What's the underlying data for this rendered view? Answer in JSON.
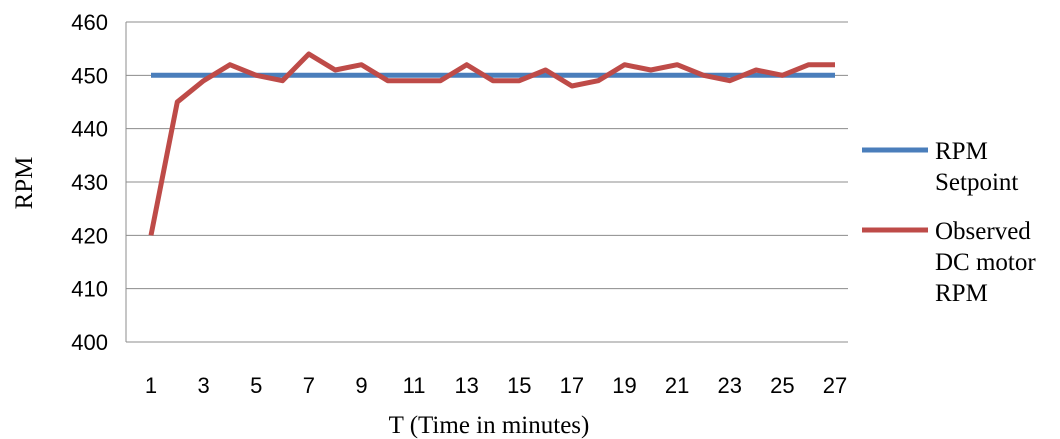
{
  "chart_data": {
    "type": "line",
    "title": "",
    "xlabel": "T (Time in minutes)",
    "ylabel": "RPM",
    "x": [
      1,
      2,
      3,
      4,
      5,
      6,
      7,
      8,
      9,
      10,
      11,
      12,
      13,
      14,
      15,
      16,
      17,
      18,
      19,
      20,
      21,
      22,
      23,
      24,
      25,
      26,
      27
    ],
    "x_tick_labels": [
      "1",
      "3",
      "5",
      "7",
      "9",
      "11",
      "13",
      "15",
      "17",
      "19",
      "21",
      "23",
      "25",
      "27"
    ],
    "y_tick_labels": [
      "400",
      "410",
      "420",
      "430",
      "440",
      "450",
      "460"
    ],
    "ylim": [
      400,
      460
    ],
    "grid": true,
    "legend_position": "right",
    "series": [
      {
        "name": "RPM Setpoint",
        "legend_lines": [
          "RPM",
          "Setpoint"
        ],
        "color": "#4a7ebb",
        "values": [
          450,
          450,
          450,
          450,
          450,
          450,
          450,
          450,
          450,
          450,
          450,
          450,
          450,
          450,
          450,
          450,
          450,
          450,
          450,
          450,
          450,
          450,
          450,
          450,
          450,
          450,
          450
        ]
      },
      {
        "name": "Observed DC motor RPM",
        "legend_lines": [
          "Observed",
          "DC motor",
          "RPM"
        ],
        "color": "#be4b48",
        "values": [
          420,
          445,
          449,
          452,
          450,
          449,
          454,
          451,
          452,
          449,
          449,
          449,
          452,
          449,
          449,
          451,
          448,
          449,
          452,
          451,
          452,
          450,
          449,
          451,
          450,
          452,
          452
        ]
      }
    ]
  }
}
